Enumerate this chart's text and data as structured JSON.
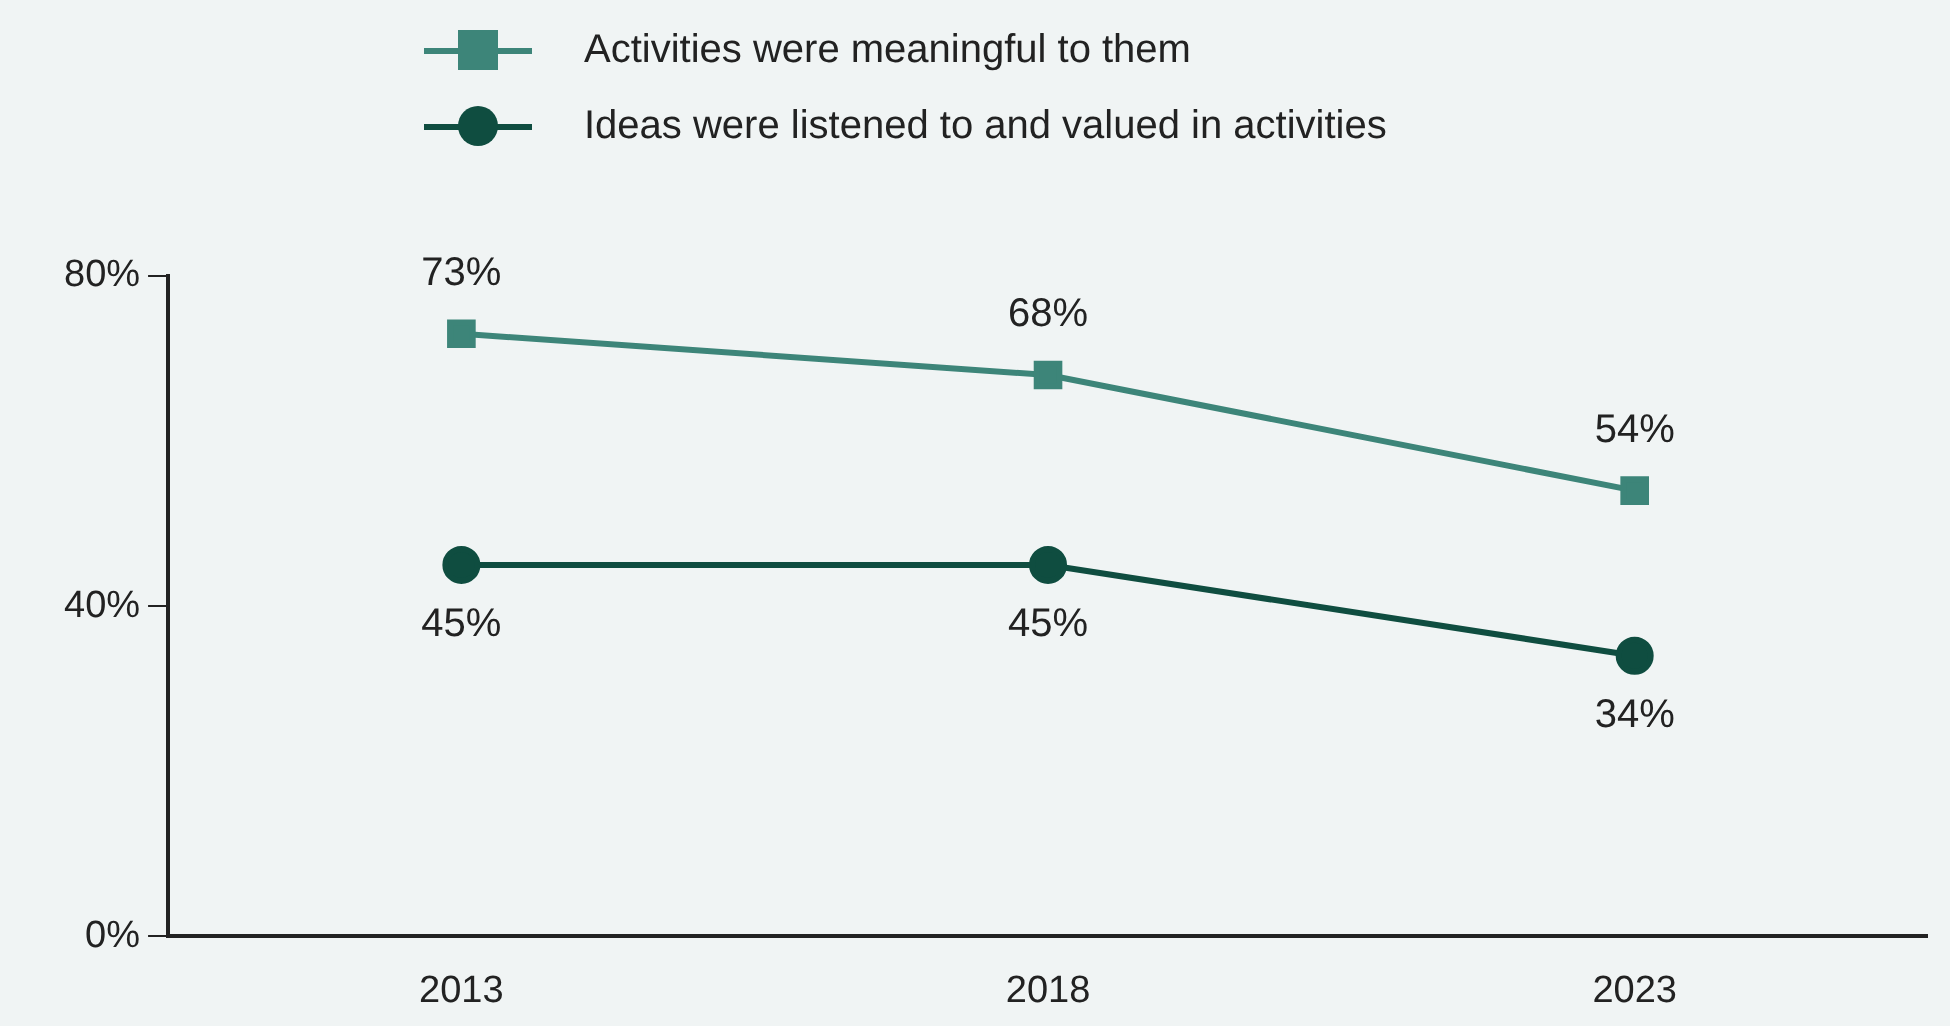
{
  "chart_data": {
    "type": "line",
    "categories": [
      "2013",
      "2018",
      "2023"
    ],
    "series": [
      {
        "name": "Activities were meaningful to them",
        "color": "#3d8579",
        "marker": "square",
        "values": [
          73,
          68,
          54
        ]
      },
      {
        "name": "Ideas were listened to and valued in activities",
        "color": "#0f4d40",
        "marker": "circle",
        "values": [
          45,
          45,
          34
        ]
      }
    ],
    "value_labels": [
      [
        "73%",
        "68%",
        "54%"
      ],
      [
        "45%",
        "45%",
        "34%"
      ]
    ],
    "ylim": [
      0,
      80
    ],
    "yticks": [
      {
        "value": 0,
        "label": "0%"
      },
      {
        "value": 40,
        "label": "40%"
      },
      {
        "value": 80,
        "label": "80%"
      }
    ],
    "grid": false,
    "legend": "top",
    "line_style": "solid"
  }
}
